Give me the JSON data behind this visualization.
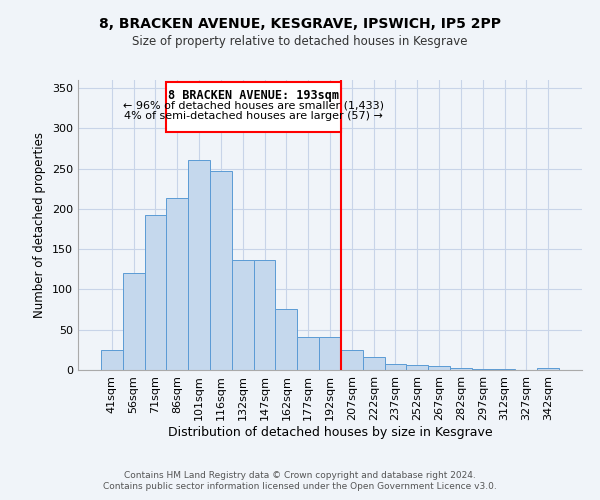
{
  "title": "8, BRACKEN AVENUE, KESGRAVE, IPSWICH, IP5 2PP",
  "subtitle": "Size of property relative to detached houses in Kesgrave",
  "xlabel": "Distribution of detached houses by size in Kesgrave",
  "ylabel": "Number of detached properties",
  "bar_labels": [
    "41sqm",
    "56sqm",
    "71sqm",
    "86sqm",
    "101sqm",
    "116sqm",
    "132sqm",
    "147sqm",
    "162sqm",
    "177sqm",
    "192sqm",
    "207sqm",
    "222sqm",
    "237sqm",
    "252sqm",
    "267sqm",
    "282sqm",
    "297sqm",
    "312sqm",
    "327sqm",
    "342sqm"
  ],
  "bar_heights": [
    25,
    121,
    193,
    214,
    261,
    247,
    137,
    136,
    76,
    41,
    41,
    25,
    16,
    8,
    6,
    5,
    2,
    1,
    1,
    0,
    2
  ],
  "bar_color": "#c5d8ed",
  "bar_edge_color": "#5b9bd5",
  "vline_x": 10.5,
  "vline_label": "8 BRACKEN AVENUE: 193sqm",
  "annotation_line1": "← 96% of detached houses are smaller (1,433)",
  "annotation_line2": "4% of semi-detached houses are larger (57) →",
  "ylim": [
    0,
    360
  ],
  "yticks": [
    0,
    50,
    100,
    150,
    200,
    250,
    300,
    350
  ],
  "footer1": "Contains HM Land Registry data © Crown copyright and database right 2024.",
  "footer2": "Contains public sector information licensed under the Open Government Licence v3.0.",
  "bg_color": "#f0f4f9"
}
